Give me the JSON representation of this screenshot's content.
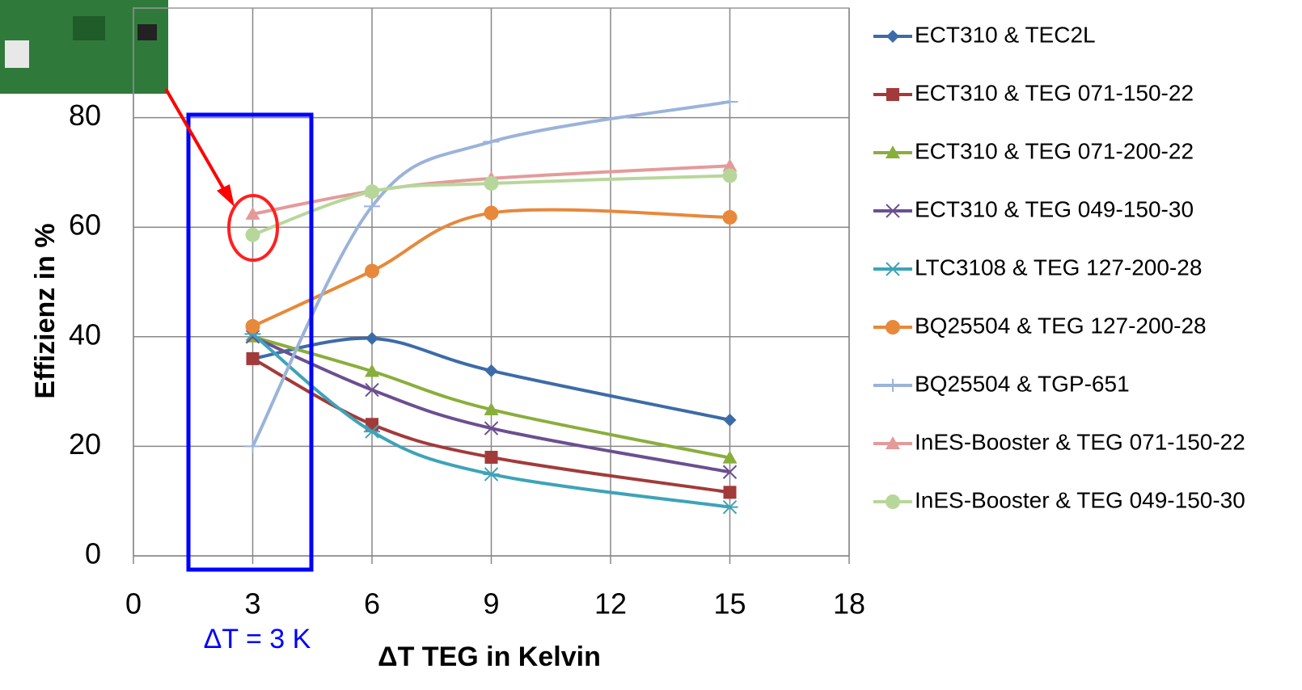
{
  "chart_data": {
    "type": "line",
    "x_label": "ΔT TEG in Kelvin",
    "y_label": "Effizienz in %",
    "annotation": "ΔT = 3 K",
    "x": [
      3,
      6,
      9,
      15
    ],
    "xlim": [
      0,
      18
    ],
    "xticks": [
      0,
      3,
      6,
      9,
      12,
      15,
      18
    ],
    "ylim": [
      0,
      100
    ],
    "yticks": [
      0,
      20,
      40,
      60,
      80
    ],
    "grid": true,
    "legend": "right",
    "series": [
      {
        "name": "ECT310 & TEC2L",
        "color": "#3d6ba8",
        "marker": "diamond",
        "values": [
          36,
          39.7,
          33.8,
          24.8
        ]
      },
      {
        "name": "ECT310 & TEG 071-150-22",
        "color": "#a33a3a",
        "marker": "square",
        "values": [
          36,
          24,
          18,
          11.6
        ]
      },
      {
        "name": "ECT310 & TEG 071-200-22",
        "color": "#8aae3c",
        "marker": "triangle",
        "values": [
          40,
          33.7,
          26.7,
          17.9
        ]
      },
      {
        "name": "ECT310 & TEG 049-150-30",
        "color": "#6b4f91",
        "marker": "x",
        "values": [
          40,
          30.3,
          23.3,
          15.3
        ]
      },
      {
        "name": "LTC3108 & TEG 127-200-28",
        "color": "#3ea3b8",
        "marker": "star",
        "values": [
          40.5,
          22.7,
          14.9,
          8.9
        ]
      },
      {
        "name": "BQ25504 & TEG 127-200-28",
        "color": "#e8883a",
        "marker": "circle",
        "values": [
          41.9,
          52,
          62.6,
          61.8
        ]
      },
      {
        "name": "BQ25504 & TGP-651",
        "color": "#9bb3d9",
        "marker": "plus",
        "values": [
          20,
          63.8,
          75.6,
          82.9
        ]
      },
      {
        "name": "InES-Booster & TEG 071-150-22",
        "color": "#e59a9a",
        "marker": "triangle",
        "values": [
          62.4,
          66.6,
          68.9,
          71.2
        ]
      },
      {
        "name": "InES-Booster & TEG 049-150-30",
        "color": "#b7d79a",
        "marker": "circle",
        "values": [
          58.6,
          66.5,
          68,
          69.4
        ]
      }
    ]
  }
}
